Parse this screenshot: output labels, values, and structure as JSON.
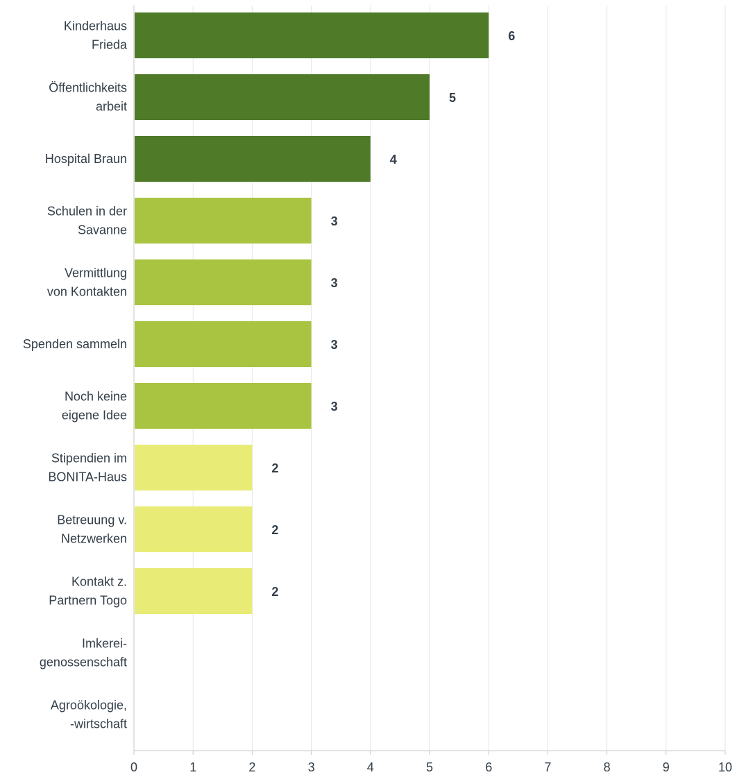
{
  "chart_data": {
    "type": "bar",
    "orientation": "horizontal",
    "categories": [
      [
        "Kinderhaus",
        "Frieda"
      ],
      [
        "Öffentlichkeits",
        "arbeit"
      ],
      [
        "Hospital Braun"
      ],
      [
        "Schulen in der",
        "Savanne"
      ],
      [
        "Vermittlung",
        "von Kontakten"
      ],
      [
        "Spenden sammeln"
      ],
      [
        "Noch keine",
        "eigene Idee"
      ],
      [
        "Stipendien im",
        "BONITA-Haus"
      ],
      [
        "Betreuung v.",
        "Netzwerken"
      ],
      [
        "Kontakt z.",
        "Partnern Togo"
      ],
      [
        "Imkerei-",
        "genossenschaft"
      ],
      [
        "Agroökologie,",
        "-wirtschaft"
      ]
    ],
    "values": [
      6,
      5,
      4,
      3,
      3,
      3,
      3,
      2,
      2,
      2,
      0,
      0
    ],
    "value_labels": [
      "6",
      "5",
      "4",
      "3",
      "3",
      "3",
      "3",
      "2",
      "2",
      "2",
      "",
      ""
    ],
    "colors": [
      "#4f7a28",
      "#4f7a28",
      "#4f7a28",
      "#a8c440",
      "#a8c440",
      "#a8c440",
      "#a8c440",
      "#e8ec76",
      "#e8ec76",
      "#e8ec76",
      "#e8ec76",
      "#e8ec76"
    ],
    "x_ticks": [
      0,
      1,
      2,
      3,
      4,
      5,
      6,
      7,
      8,
      9,
      10
    ],
    "xlim": [
      0,
      10
    ],
    "grid": true,
    "title": "",
    "xlabel": "",
    "ylabel": ""
  }
}
